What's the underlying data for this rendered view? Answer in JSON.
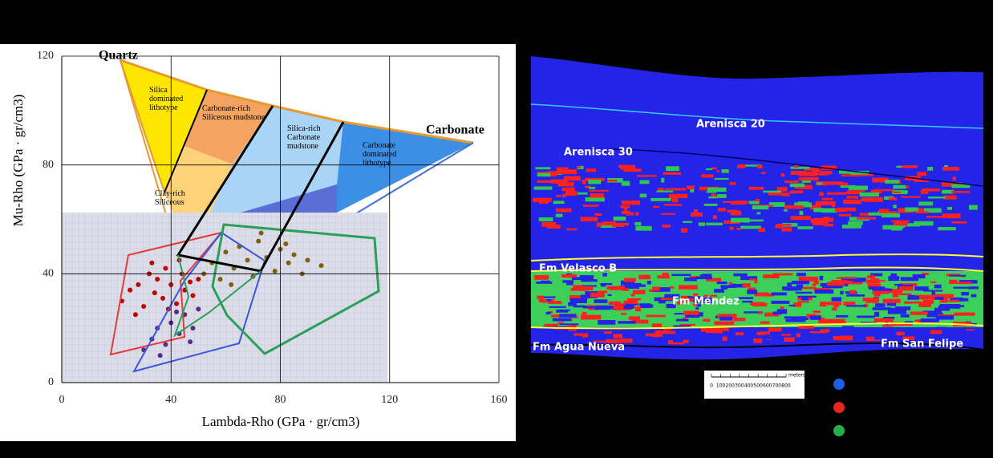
{
  "chart_data": {
    "type": "scatter",
    "x_label": "Lambda-Rho (GPa · gr/cm3)",
    "y_label": "Mu-Rho (GPa · gr/cm3)",
    "annotations": [
      "Quartz",
      "Carbonate",
      "Silica dominated lithotype",
      "Carbonate-rich Siliceous mudstone",
      "Silica-rich Carbonate mudstone",
      "Carbonate dominated lithotype",
      "Clay-rich Siliceous"
    ],
    "xlim": [
      0,
      160
    ],
    "ylim": [
      0,
      120
    ],
    "xticks": [
      0,
      40,
      80,
      120,
      160
    ],
    "yticks": [
      0,
      40,
      80,
      120
    ],
    "grid": true,
    "series": [
      {
        "color": "#c00000",
        "x": [
          22,
          25,
          28,
          30,
          32,
          34,
          35,
          37,
          38,
          40,
          42,
          44,
          45,
          47,
          48,
          50,
          27,
          33,
          39,
          43
        ],
        "values": [
          30,
          34,
          36,
          28,
          40,
          33,
          38,
          31,
          42,
          36,
          29,
          40,
          34,
          37,
          32,
          38,
          25,
          44,
          27,
          45
        ]
      },
      {
        "color": "#7a6010",
        "x": [
          52,
          55,
          58,
          60,
          63,
          65,
          68,
          70,
          72,
          75,
          78,
          80,
          83,
          85,
          88,
          90,
          95,
          62,
          73,
          82
        ],
        "values": [
          40,
          44,
          38,
          48,
          42,
          50,
          45,
          39,
          52,
          46,
          41,
          49,
          44,
          47,
          40,
          45,
          43,
          36,
          55,
          51
        ]
      },
      {
        "color": "#5a2a8a",
        "x": [
          30,
          33,
          35,
          38,
          40,
          43,
          45,
          48,
          50,
          36,
          42,
          47
        ],
        "values": [
          12,
          16,
          20,
          14,
          22,
          18,
          25,
          20,
          27,
          10,
          26,
          15
        ]
      }
    ]
  },
  "seismic_section": {
    "labels": [
      "Arenisca 20",
      "Arenisca 30",
      "Fm Velasco B",
      "Fm Méndez",
      "Fm Agua Nueva",
      "Fm San Felipe"
    ],
    "scale_ticks": [
      0,
      100,
      200,
      300,
      400,
      500,
      600,
      700,
      800
    ],
    "scale_unit": "meters"
  }
}
